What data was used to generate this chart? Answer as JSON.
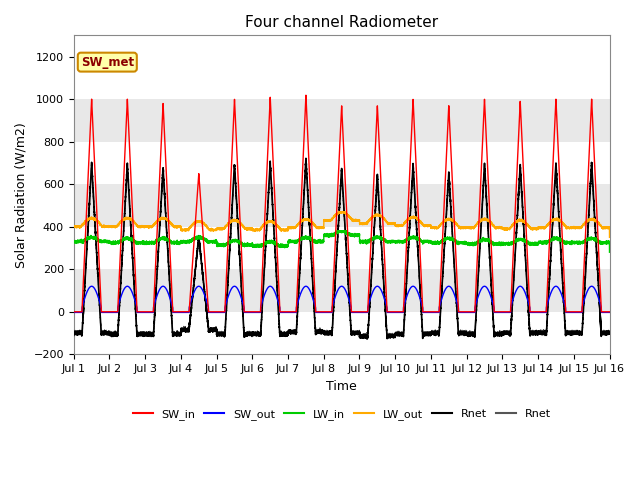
{
  "title": "Four channel Radiometer",
  "xlabel": "Time",
  "ylabel": "Solar Radiation (W/m2)",
  "ylim": [
    -200,
    1300
  ],
  "yticks": [
    -200,
    0,
    200,
    400,
    600,
    800,
    1000,
    1200
  ],
  "annotation_text": "SW_met",
  "bg_color": "#e8e8e8",
  "white_band_color": "#f5f5f5",
  "colors": {
    "SW_in": "#ff0000",
    "SW_out": "#0000ff",
    "LW_in": "#00cc00",
    "LW_out": "#ffaa00",
    "Rnet1": "#000000",
    "Rnet2": "#555555"
  },
  "xtick_labels": [
    "Jul 1",
    "Jul 2",
    "Jul 3",
    "Jul 4",
    "Jul 5",
    "Jul 6",
    "Jul 7",
    "Jul 8",
    "Jul 9",
    "Jul 10",
    "Jul 11",
    "Jul 12",
    "Jul 13",
    "Jul 14",
    "Jul 15",
    "Jul 16"
  ],
  "xtick_positions": [
    0,
    1,
    2,
    3,
    4,
    5,
    6,
    7,
    8,
    9,
    10,
    11,
    12,
    13,
    14,
    15
  ]
}
